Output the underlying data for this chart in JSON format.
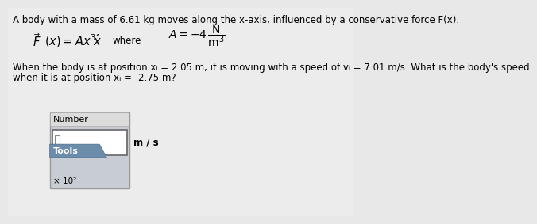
{
  "bg_color": "#e8e8e8",
  "title_line": "A body with a mass of 6.61 kg moves along the x-axis, influenced by a conservative force F(x).",
  "question_line1": "When the body is at position xᵢ = 2.05 m, it is moving with a speed of vᵢ = 7.01 m/s. What is the body's speed",
  "question_line2": "when it is at position xᵢ = -2.75 m?",
  "number_label": "Number",
  "unit_label": "m / s",
  "tools_label": "Tools",
  "x10_label": "× 10²",
  "tools_bg": "#6b8caa",
  "widget_bg": "#c8cdd4",
  "font_size_title": 8.5,
  "font_size_body": 8.5,
  "font_size_widget": 8.0,
  "font_size_formula": 10.5
}
